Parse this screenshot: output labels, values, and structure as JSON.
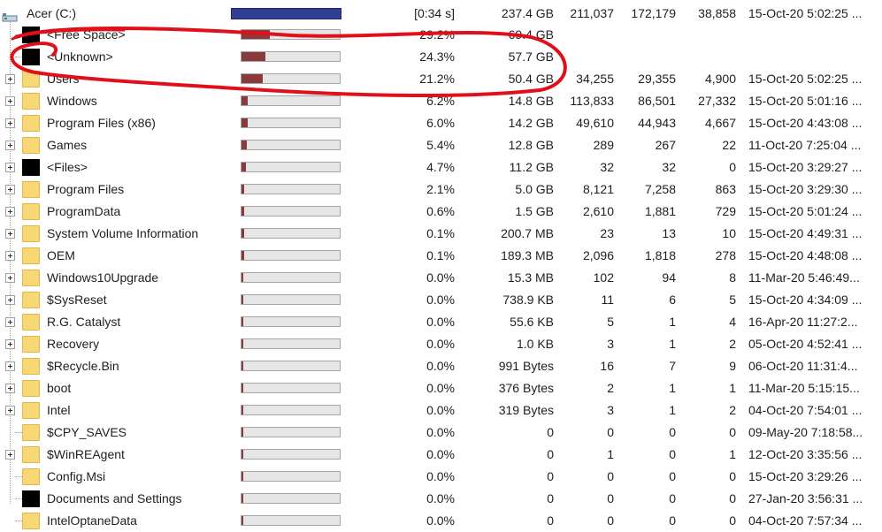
{
  "root": {
    "name": "Acer (C:)",
    "duration": "[0:34 s]",
    "size": "237.4 GB",
    "files": "211,037",
    "items": "172,179",
    "subdirs": "38,858",
    "modified": "15-Oct-20 5:02:25 ...",
    "bar_color": "#2f3f94"
  },
  "rows": [
    {
      "name": "<Free Space>",
      "icon": "black-square-icon",
      "expandable": false,
      "bar": 0.292,
      "pct": "29.2%",
      "size": "69.4 GB",
      "files": "",
      "items": "",
      "subdirs": "",
      "modified": ""
    },
    {
      "name": "<Unknown>",
      "icon": "black-square-icon",
      "expandable": false,
      "bar": 0.243,
      "pct": "24.3%",
      "size": "57.7 GB",
      "files": "",
      "items": "",
      "subdirs": "",
      "modified": ""
    },
    {
      "name": "Users",
      "icon": "folder-icon",
      "expandable": true,
      "bar": 0.212,
      "pct": "21.2%",
      "size": "50.4 GB",
      "files": "34,255",
      "items": "29,355",
      "subdirs": "4,900",
      "modified": "15-Oct-20 5:02:25 ..."
    },
    {
      "name": "Windows",
      "icon": "folder-icon",
      "expandable": true,
      "bar": 0.062,
      "pct": "6.2%",
      "size": "14.8 GB",
      "files": "113,833",
      "items": "86,501",
      "subdirs": "27,332",
      "modified": "15-Oct-20 5:01:16 ..."
    },
    {
      "name": "Program Files (x86)",
      "icon": "folder-icon",
      "expandable": true,
      "bar": 0.06,
      "pct": "6.0%",
      "size": "14.2 GB",
      "files": "49,610",
      "items": "44,943",
      "subdirs": "4,667",
      "modified": "15-Oct-20 4:43:08 ..."
    },
    {
      "name": "Games",
      "icon": "folder-icon",
      "expandable": true,
      "bar": 0.054,
      "pct": "5.4%",
      "size": "12.8 GB",
      "files": "289",
      "items": "267",
      "subdirs": "22",
      "modified": "11-Oct-20 7:25:04 ..."
    },
    {
      "name": "<Files>",
      "icon": "black-square-icon",
      "expandable": true,
      "bar": 0.047,
      "pct": "4.7%",
      "size": "11.2 GB",
      "files": "32",
      "items": "32",
      "subdirs": "0",
      "modified": "15-Oct-20 3:29:27 ..."
    },
    {
      "name": "Program Files",
      "icon": "folder-icon",
      "expandable": true,
      "bar": 0.021,
      "pct": "2.1%",
      "size": "5.0 GB",
      "files": "8,121",
      "items": "7,258",
      "subdirs": "863",
      "modified": "15-Oct-20 3:29:30 ..."
    },
    {
      "name": "ProgramData",
      "icon": "folder-icon",
      "expandable": true,
      "bar": 0.006,
      "pct": "0.6%",
      "size": "1.5 GB",
      "files": "2,610",
      "items": "1,881",
      "subdirs": "729",
      "modified": "15-Oct-20 5:01:24 ..."
    },
    {
      "name": "System Volume Information",
      "icon": "folder-icon",
      "expandable": true,
      "bar": 0.001,
      "pct": "0.1%",
      "size": "200.7 MB",
      "files": "23",
      "items": "13",
      "subdirs": "10",
      "modified": "15-Oct-20 4:49:31 ..."
    },
    {
      "name": "OEM",
      "icon": "folder-icon",
      "expandable": true,
      "bar": 0.001,
      "pct": "0.1%",
      "size": "189.3 MB",
      "files": "2,096",
      "items": "1,818",
      "subdirs": "278",
      "modified": "15-Oct-20 4:48:08 ..."
    },
    {
      "name": "Windows10Upgrade",
      "icon": "folder-icon",
      "expandable": true,
      "bar": 0,
      "pct": "0.0%",
      "size": "15.3 MB",
      "files": "102",
      "items": "94",
      "subdirs": "8",
      "modified": "11-Mar-20 5:46:49..."
    },
    {
      "name": "$SysReset",
      "icon": "folder-icon",
      "expandable": true,
      "bar": 0,
      "pct": "0.0%",
      "size": "738.9 KB",
      "files": "11",
      "items": "6",
      "subdirs": "5",
      "modified": "15-Oct-20 4:34:09 ..."
    },
    {
      "name": "R.G. Catalyst",
      "icon": "folder-icon",
      "expandable": true,
      "bar": 0,
      "pct": "0.0%",
      "size": "55.6 KB",
      "files": "5",
      "items": "1",
      "subdirs": "4",
      "modified": "16-Apr-20 11:27:2..."
    },
    {
      "name": "Recovery",
      "icon": "folder-icon",
      "expandable": true,
      "bar": 0,
      "pct": "0.0%",
      "size": "1.0 KB",
      "files": "3",
      "items": "1",
      "subdirs": "2",
      "modified": "05-Oct-20 4:52:41 ..."
    },
    {
      "name": "$Recycle.Bin",
      "icon": "folder-icon",
      "expandable": true,
      "bar": 0,
      "pct": "0.0%",
      "size": "991 Bytes",
      "files": "16",
      "items": "7",
      "subdirs": "9",
      "modified": "06-Oct-20 11:31:4..."
    },
    {
      "name": "boot",
      "icon": "folder-icon",
      "expandable": true,
      "bar": 0,
      "pct": "0.0%",
      "size": "376 Bytes",
      "files": "2",
      "items": "1",
      "subdirs": "1",
      "modified": "11-Mar-20 5:15:15..."
    },
    {
      "name": "Intel",
      "icon": "folder-icon",
      "expandable": true,
      "bar": 0,
      "pct": "0.0%",
      "size": "319 Bytes",
      "files": "3",
      "items": "1",
      "subdirs": "2",
      "modified": "04-Oct-20 7:54:01 ..."
    },
    {
      "name": "$CPY_SAVES",
      "icon": "folder-icon",
      "expandable": false,
      "bar": 0,
      "pct": "0.0%",
      "size": "0",
      "files": "0",
      "items": "0",
      "subdirs": "0",
      "modified": "09-May-20 7:18:58..."
    },
    {
      "name": "$WinREAgent",
      "icon": "folder-icon",
      "expandable": true,
      "bar": 0,
      "pct": "0.0%",
      "size": "0",
      "files": "1",
      "items": "0",
      "subdirs": "1",
      "modified": "12-Oct-20 3:35:56 ..."
    },
    {
      "name": "Config.Msi",
      "icon": "folder-icon",
      "expandable": false,
      "bar": 0,
      "pct": "0.0%",
      "size": "0",
      "files": "0",
      "items": "0",
      "subdirs": "0",
      "modified": "15-Oct-20 3:29:26 ..."
    },
    {
      "name": "Documents and Settings",
      "icon": "black-square-icon",
      "expandable": false,
      "bar": 0,
      "pct": "0.0%",
      "size": "0",
      "files": "0",
      "items": "0",
      "subdirs": "0",
      "modified": "27-Jan-20 3:56:31 ..."
    },
    {
      "name": "IntelOptaneData",
      "icon": "folder-icon",
      "expandable": false,
      "bar": 0,
      "pct": "0.0%",
      "size": "0",
      "files": "0",
      "items": "0",
      "subdirs": "0",
      "modified": "04-Oct-20 7:57:34 ..."
    }
  ],
  "colors": {
    "bar_fill": "#8a3a3a",
    "annotation_stroke": "#e0101a"
  }
}
